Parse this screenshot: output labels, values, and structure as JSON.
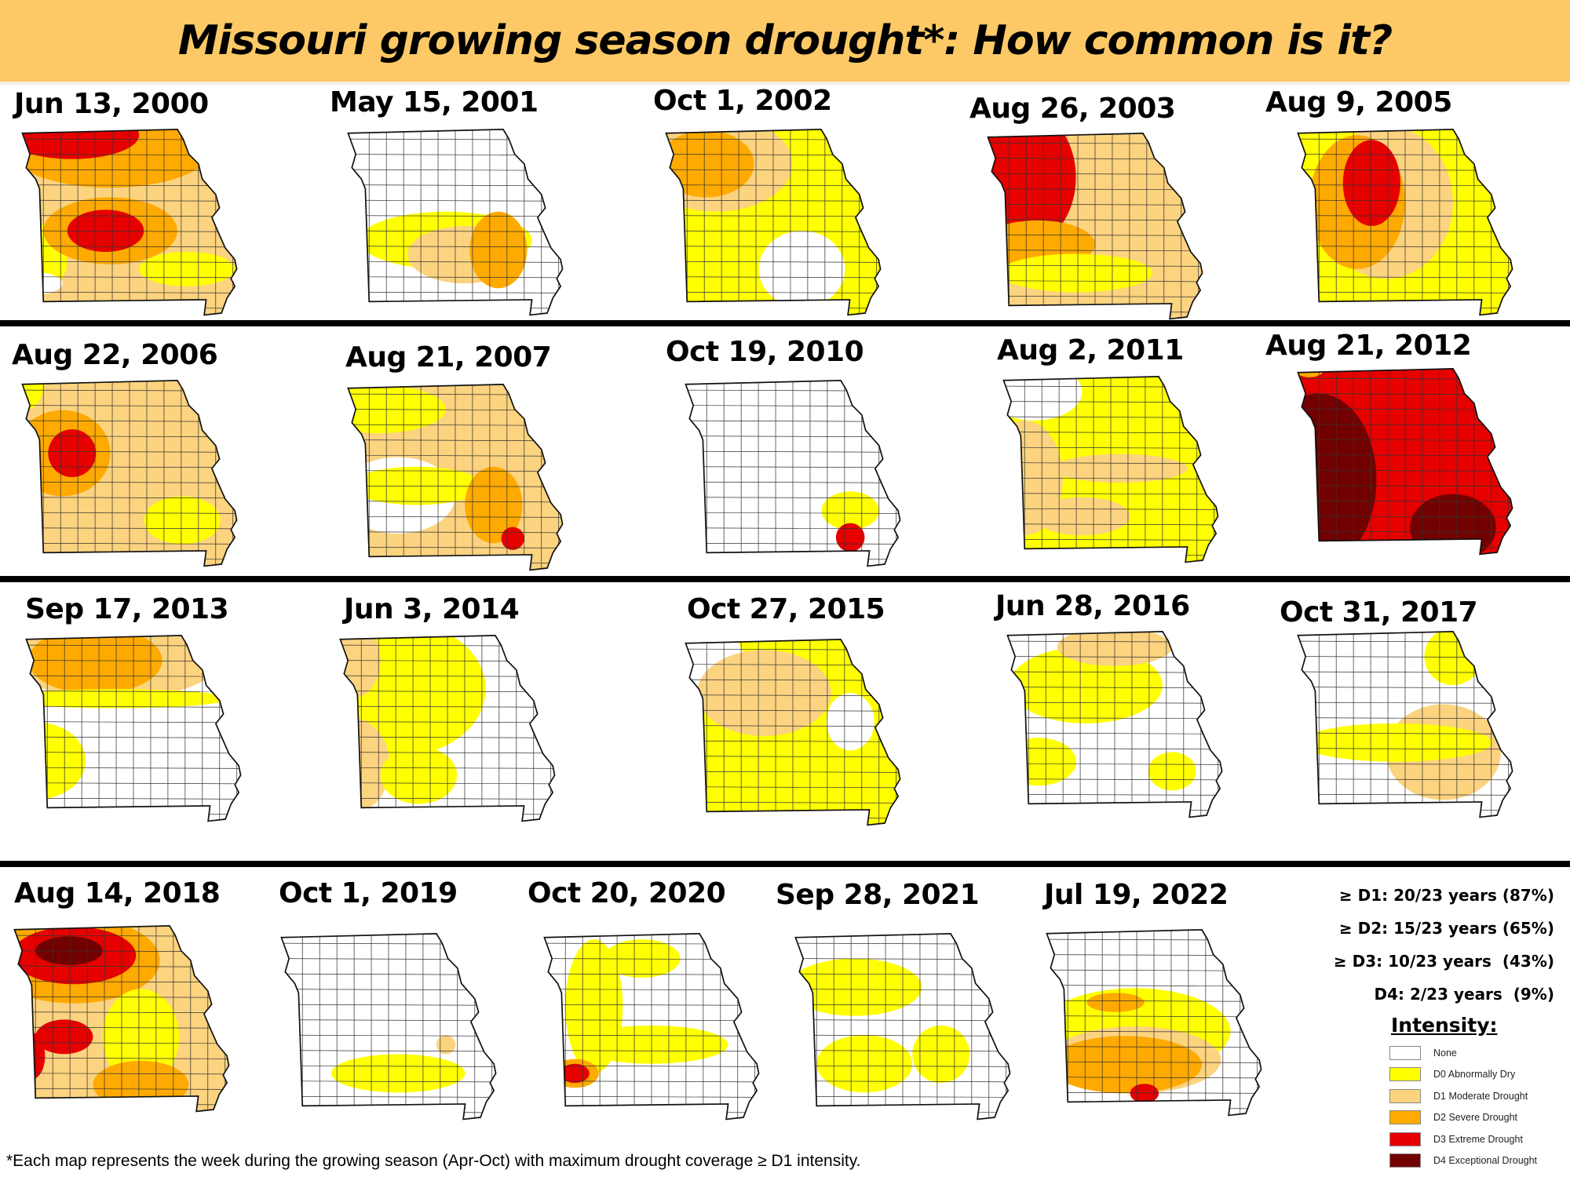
{
  "title": "Missouri growing season drought*: How common is it?",
  "colors": {
    "none": "#ffffff",
    "d0": "#ffff00",
    "d1": "#fcd37f",
    "d2": "#ffaa00",
    "d3": "#e60000",
    "d4": "#730000",
    "title_bar": "#fdc966"
  },
  "maps": [
    {
      "date": "Jun 13, 2000",
      "base": "d1",
      "blobs": [
        [
          "d2",
          100,
          20,
          110,
          45
        ],
        [
          "d3",
          60,
          10,
          70,
          25
        ],
        [
          "d0",
          15,
          140,
          40,
          40
        ],
        [
          "d2",
          100,
          110,
          70,
          35
        ],
        [
          "d3",
          95,
          110,
          40,
          22
        ],
        [
          "d0",
          180,
          150,
          50,
          18
        ],
        [
          "none",
          20,
          165,
          30,
          12
        ]
      ]
    },
    {
      "date": "May 15, 2001",
      "base": "none",
      "blobs": [
        [
          "d0",
          110,
          120,
          90,
          30
        ],
        [
          "d1",
          130,
          135,
          60,
          30
        ],
        [
          "d2",
          165,
          130,
          30,
          40
        ]
      ]
    },
    {
      "date": "Oct 1, 2002",
      "base": "d0",
      "blobs": [
        [
          "d1",
          60,
          40,
          80,
          50
        ],
        [
          "d2",
          50,
          40,
          50,
          35
        ],
        [
          "none",
          150,
          150,
          45,
          40
        ]
      ]
    },
    {
      "date": "Aug 26, 2003",
      "base": "d1",
      "blobs": [
        [
          "d3",
          40,
          50,
          60,
          75
        ],
        [
          "d2",
          60,
          120,
          60,
          25
        ],
        [
          "d0",
          100,
          150,
          80,
          20
        ]
      ]
    },
    {
      "date": "Aug 9, 2005",
      "base": "d0",
      "blobs": [
        [
          "d1",
          100,
          80,
          70,
          80
        ],
        [
          "d2",
          70,
          80,
          50,
          70
        ],
        [
          "d3",
          85,
          60,
          30,
          45
        ]
      ]
    },
    {
      "date": "Aug 22, 2006",
      "base": "d1",
      "blobs": [
        [
          "d0",
          10,
          10,
          20,
          25
        ],
        [
          "d2",
          50,
          80,
          50,
          45
        ],
        [
          "d3",
          60,
          80,
          25,
          25
        ],
        [
          "d0",
          175,
          150,
          40,
          25
        ]
      ]
    },
    {
      "date": "Aug 21, 2007",
      "base": "d1",
      "blobs": [
        [
          "d0",
          40,
          30,
          70,
          25
        ],
        [
          "none",
          60,
          120,
          60,
          40
        ],
        [
          "d0",
          80,
          110,
          70,
          20
        ],
        [
          "d2",
          160,
          130,
          30,
          40
        ],
        [
          "d3",
          180,
          165,
          12,
          12
        ]
      ]
    },
    {
      "date": "Oct 19, 2010",
      "base": "none",
      "blobs": [
        [
          "d0",
          180,
          140,
          30,
          20
        ],
        [
          "d3",
          180,
          168,
          15,
          15
        ]
      ]
    },
    {
      "date": "Aug 2, 2011",
      "base": "d0",
      "blobs": [
        [
          "none",
          40,
          20,
          50,
          30
        ],
        [
          "d1",
          30,
          110,
          40,
          60
        ],
        [
          "d1",
          130,
          100,
          70,
          15
        ],
        [
          "d1",
          90,
          150,
          50,
          20
        ]
      ]
    },
    {
      "date": "Aug 21, 2012",
      "base": "d3",
      "blobs": [
        [
          "d4",
          30,
          120,
          60,
          90
        ],
        [
          "d4",
          170,
          170,
          45,
          35
        ],
        [
          "d2",
          20,
          5,
          15,
          8
        ]
      ]
    },
    {
      "date": "Sep 17, 2013",
      "base": "none",
      "blobs": [
        [
          "d1",
          100,
          30,
          110,
          40
        ],
        [
          "d2",
          80,
          30,
          70,
          35
        ],
        [
          "d0",
          100,
          70,
          120,
          10
        ],
        [
          "d0",
          20,
          135,
          50,
          40
        ]
      ]
    },
    {
      "date": "Jun 3, 2014",
      "base": "none",
      "blobs": [
        [
          "d0",
          70,
          60,
          90,
          70
        ],
        [
          "d1",
          20,
          30,
          30,
          40
        ],
        [
          "d1",
          20,
          140,
          40,
          50
        ],
        [
          "d0",
          90,
          150,
          40,
          30
        ]
      ]
    },
    {
      "date": "Oct 27, 2015",
      "base": "d0",
      "blobs": [
        [
          "none",
          30,
          30,
          40,
          40
        ],
        [
          "d1",
          90,
          60,
          70,
          45
        ],
        [
          "none",
          180,
          90,
          25,
          30
        ]
      ]
    },
    {
      "date": "Jun 28, 2016",
      "base": "none",
      "blobs": [
        [
          "d0",
          90,
          60,
          80,
          40
        ],
        [
          "d1",
          120,
          20,
          60,
          20
        ],
        [
          "d0",
          40,
          140,
          40,
          25
        ],
        [
          "d0",
          180,
          150,
          25,
          20
        ]
      ]
    },
    {
      "date": "Oct 31, 2017",
      "base": "none",
      "blobs": [
        [
          "d1",
          160,
          130,
          60,
          50
        ],
        [
          "d0",
          110,
          120,
          100,
          20
        ],
        [
          "d0",
          170,
          30,
          30,
          30
        ]
      ]
    },
    {
      "date": "Aug 14, 2018",
      "base": "d1",
      "blobs": [
        [
          "d2",
          70,
          40,
          90,
          45
        ],
        [
          "d3",
          70,
          35,
          65,
          30
        ],
        [
          "d4",
          65,
          30,
          35,
          15
        ],
        [
          "d0",
          140,
          120,
          40,
          50
        ],
        [
          "d3",
          60,
          120,
          30,
          18
        ],
        [
          "d3",
          25,
          140,
          15,
          25
        ],
        [
          "d2",
          140,
          170,
          50,
          25
        ]
      ]
    },
    {
      "date": "Oct 1, 2019",
      "base": "none",
      "blobs": [
        [
          "d0",
          130,
          150,
          70,
          20
        ],
        [
          "d1",
          180,
          120,
          10,
          10
        ]
      ]
    },
    {
      "date": "Oct 20, 2020",
      "base": "none",
      "blobs": [
        [
          "d0",
          60,
          80,
          30,
          70
        ],
        [
          "d0",
          120,
          120,
          80,
          20
        ],
        [
          "d0",
          110,
          30,
          40,
          20
        ],
        [
          "d2",
          40,
          150,
          25,
          15
        ],
        [
          "d3",
          40,
          150,
          15,
          10
        ]
      ]
    },
    {
      "date": "Sep 28, 2021",
      "base": "none",
      "blobs": [
        [
          "d0",
          70,
          60,
          70,
          30
        ],
        [
          "d0",
          80,
          140,
          50,
          30
        ],
        [
          "d0",
          160,
          130,
          30,
          30
        ]
      ]
    },
    {
      "date": "Jul 19, 2022",
      "base": "none",
      "blobs": [
        [
          "d0",
          100,
          110,
          100,
          45
        ],
        [
          "d1",
          100,
          140,
          90,
          35
        ],
        [
          "d2",
          90,
          145,
          80,
          30
        ],
        [
          "d3",
          110,
          175,
          15,
          10
        ],
        [
          "d2",
          80,
          80,
          30,
          10
        ]
      ]
    }
  ],
  "stats": [
    "≥ D1: 20/23 years (87%)",
    "≥ D2: 15/23 years (65%)",
    "≥ D3: 10/23 years  (43%)",
    "D4: 2/23 years  (9%)"
  ],
  "legend": {
    "title": "Intensity:",
    "items": [
      {
        "key": "none",
        "label": "None"
      },
      {
        "key": "d0",
        "label": "D0 Abnormally Dry"
      },
      {
        "key": "d1",
        "label": "D1 Moderate Drought"
      },
      {
        "key": "d2",
        "label": "D2 Severe Drought"
      },
      {
        "key": "d3",
        "label": "D3 Extreme Drought"
      },
      {
        "key": "d4",
        "label": "D4 Exceptional Drought"
      }
    ]
  },
  "footnote": "*Each map represents the week during the growing season (Apr-Oct) with maximum drought coverage ≥ D1 intensity."
}
